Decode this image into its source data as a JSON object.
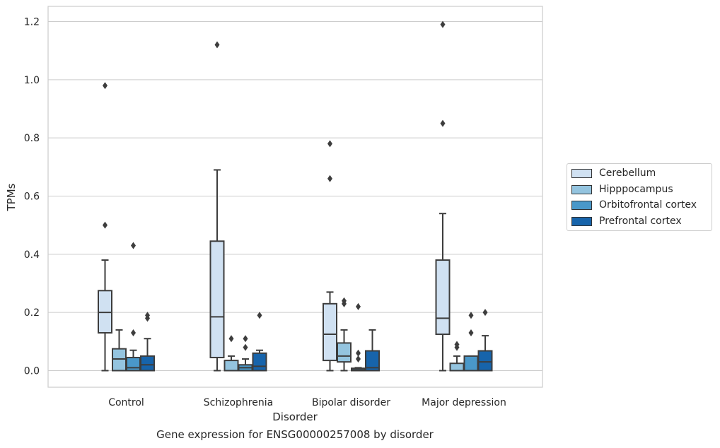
{
  "chart_data": {
    "type": "box",
    "title": "",
    "caption": "Gene expression for ENSG00000257008 by disorder",
    "xlabel": "Disorder",
    "ylabel": "TPMs",
    "ylim": [
      -0.058,
      1.25
    ],
    "yticks": [
      "0.0",
      "0.2",
      "0.4",
      "0.6",
      "0.8",
      "1.0",
      "1.2"
    ],
    "grid": "horizontal",
    "legend_position": "right",
    "categories": [
      "Control",
      "Schizophrenia",
      "Bipolar disorder",
      "Major depression"
    ],
    "series": [
      {
        "name": "Cerebellum",
        "color": "#d0e1f2",
        "boxes": [
          {
            "q1": 0.13,
            "median": 0.2,
            "q3": 0.275,
            "whislo": 0.0,
            "whishi": 0.38,
            "fliers": [
              0.5,
              0.98
            ]
          },
          {
            "q1": 0.045,
            "median": 0.185,
            "q3": 0.445,
            "whislo": 0.0,
            "whishi": 0.69,
            "fliers": [
              1.12
            ]
          },
          {
            "q1": 0.035,
            "median": 0.125,
            "q3": 0.23,
            "whislo": 0.0,
            "whishi": 0.27,
            "fliers": [
              0.66,
              0.78
            ]
          },
          {
            "q1": 0.125,
            "median": 0.18,
            "q3": 0.38,
            "whislo": 0.0,
            "whishi": 0.54,
            "fliers": [
              0.85,
              1.19
            ]
          }
        ]
      },
      {
        "name": "Hipppocampus",
        "color": "#94c4df",
        "boxes": [
          {
            "q1": 0.0,
            "median": 0.04,
            "q3": 0.075,
            "whislo": 0.0,
            "whishi": 0.14,
            "fliers": []
          },
          {
            "q1": 0.0,
            "median": 0.0,
            "q3": 0.035,
            "whislo": 0.0,
            "whishi": 0.05,
            "fliers": [
              0.11
            ]
          },
          {
            "q1": 0.03,
            "median": 0.05,
            "q3": 0.095,
            "whislo": 0.0,
            "whishi": 0.14,
            "fliers": [
              0.23,
              0.24
            ]
          },
          {
            "q1": 0.0,
            "median": 0.0,
            "q3": 0.025,
            "whislo": 0.0,
            "whishi": 0.05,
            "fliers": [
              0.08,
              0.09
            ]
          }
        ]
      },
      {
        "name": "Orbitofrontal cortex",
        "color": "#4a98c9",
        "boxes": [
          {
            "q1": 0.0,
            "median": 0.01,
            "q3": 0.045,
            "whislo": 0.0,
            "whishi": 0.07,
            "fliers": [
              0.13,
              0.43
            ]
          },
          {
            "q1": 0.0,
            "median": 0.01,
            "q3": 0.02,
            "whislo": 0.0,
            "whishi": 0.04,
            "fliers": [
              0.08,
              0.11
            ]
          },
          {
            "q1": 0.0,
            "median": 0.003,
            "q3": 0.008,
            "whislo": 0.0,
            "whishi": 0.01,
            "fliers": [
              0.04,
              0.06,
              0.22
            ]
          },
          {
            "q1": 0.0,
            "median": 0.0,
            "q3": 0.05,
            "whislo": 0.0,
            "whishi": 0.05,
            "fliers": [
              0.13,
              0.19
            ]
          }
        ]
      },
      {
        "name": "Prefrontal cortex",
        "color": "#1764ab",
        "boxes": [
          {
            "q1": 0.0,
            "median": 0.02,
            "q3": 0.05,
            "whislo": 0.0,
            "whishi": 0.11,
            "fliers": [
              0.18,
              0.19
            ]
          },
          {
            "q1": 0.0,
            "median": 0.015,
            "q3": 0.06,
            "whislo": 0.0,
            "whishi": 0.07,
            "fliers": [
              0.19
            ]
          },
          {
            "q1": 0.0,
            "median": 0.01,
            "q3": 0.068,
            "whislo": 0.0,
            "whishi": 0.14,
            "fliers": []
          },
          {
            "q1": 0.0,
            "median": 0.03,
            "q3": 0.068,
            "whislo": 0.0,
            "whishi": 0.12,
            "fliers": [
              0.2
            ]
          }
        ]
      }
    ]
  }
}
